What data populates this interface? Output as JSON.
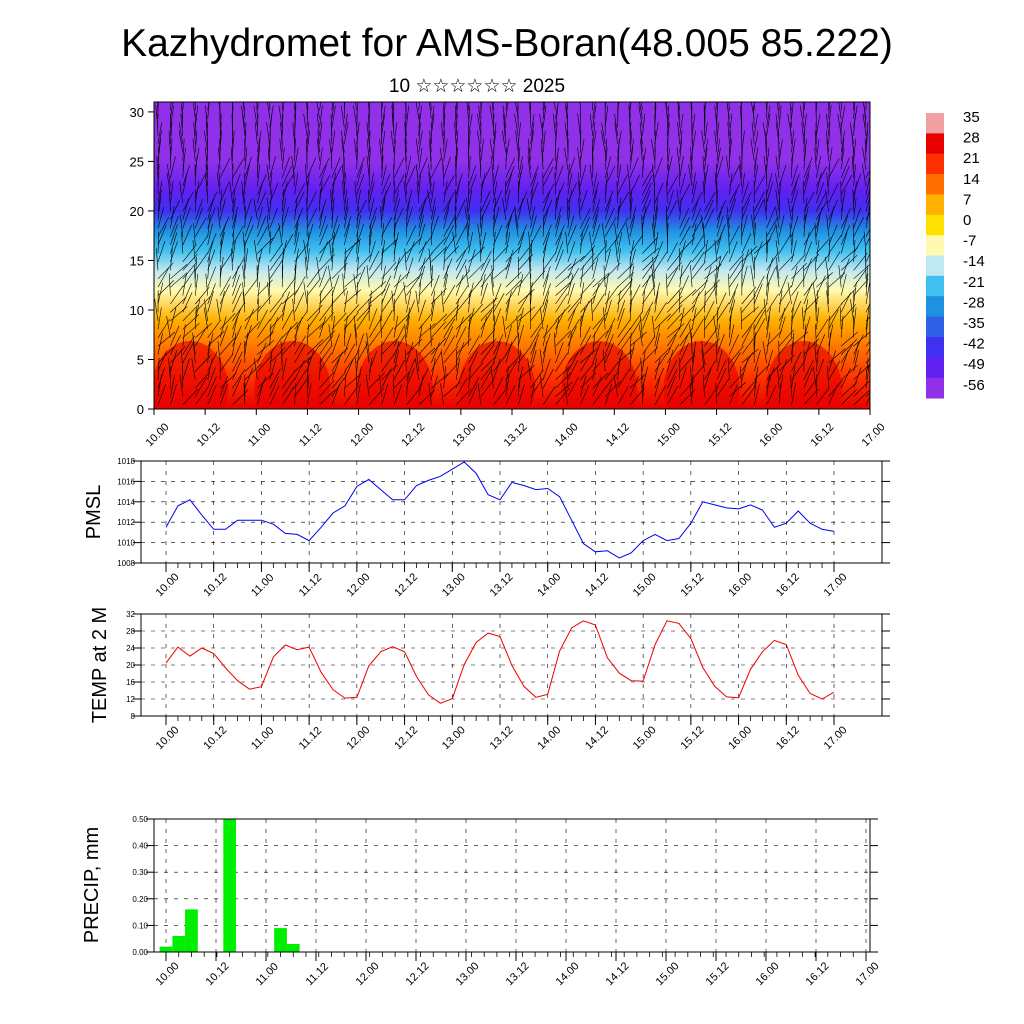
{
  "header": {
    "title": "Kazhydromet for AMS-Boran(48.005 85.222)",
    "subtitle": "10 ☆☆☆☆☆☆ 2025"
  },
  "time_labels": [
    "10.00",
    "10.12",
    "11.00",
    "11.12",
    "12.00",
    "12.12",
    "13.00",
    "13.12",
    "14.00",
    "14.12",
    "15.00",
    "15.12",
    "16.00",
    "16.12",
    "17.00"
  ],
  "chart_data": [
    {
      "type": "heatmap",
      "title": "",
      "xlabel": "",
      "ylabel": "",
      "x_ticks": [
        "10.00",
        "10.12",
        "11.00",
        "11.12",
        "12.00",
        "12.12",
        "13.00",
        "13.12",
        "14.00",
        "14.12",
        "15.00",
        "15.12",
        "16.00",
        "16.12",
        "17.00"
      ],
      "y_ticks": [
        0,
        5,
        10,
        15,
        20,
        25,
        30
      ],
      "ylim": [
        0,
        31
      ],
      "vertical_profile_temperature": {
        "levels": [
          0,
          3,
          6,
          9,
          12,
          14,
          16,
          18,
          20,
          22,
          25,
          28,
          31
        ],
        "values_C": [
          30,
          24,
          14,
          4,
          -4,
          -12,
          -18,
          -30,
          -40,
          -52,
          -56,
          -58,
          -56
        ]
      },
      "colorbar": {
        "labels": [
          "35",
          "28",
          "21",
          "14",
          "7",
          "0",
          "-7",
          "-14",
          "-21",
          "-28",
          "-35",
          "-42",
          "-49",
          "-56"
        ],
        "colors": [
          "#f0a0a0",
          "#e80000",
          "#ff3000",
          "#ff7000",
          "#ffb000",
          "#ffe000",
          "#fffab0",
          "#c0e8f0",
          "#40c0f0",
          "#2090e0",
          "#3060e8",
          "#4030f0",
          "#6020f0",
          "#9030e8"
        ]
      },
      "overlay": "wind barbs"
    },
    {
      "type": "line",
      "title": "",
      "xlabel": "",
      "ylabel": "PMSL",
      "ylim": [
        1008,
        1018
      ],
      "y_ticks": [
        "1008",
        "1010",
        "1012",
        "1014",
        "1016",
        "1018"
      ],
      "x_ticks": [
        "10.00",
        "10.12",
        "11.00",
        "11.12",
        "12.00",
        "12.12",
        "13.00",
        "13.12",
        "14.00",
        "14.12",
        "15.00",
        "15.12",
        "16.00",
        "16.12",
        "17.00"
      ],
      "step_hours": 3,
      "color": "#0000ee",
      "values": [
        1011.5,
        1013.6,
        1014.2,
        1012.7,
        1011.3,
        1011.3,
        1012.2,
        1012.2,
        1012.2,
        1011.8,
        1010.9,
        1010.8,
        1010.2,
        1011.5,
        1012.9,
        1013.6,
        1015.5,
        1016.2,
        1015.2,
        1014.2,
        1014.2,
        1015.6,
        1016.1,
        1016.5,
        1017.2,
        1017.9,
        1016.8,
        1014.7,
        1014.2,
        1015.9,
        1015.6,
        1015.2,
        1015.3,
        1014.5,
        1012.2,
        1009.9,
        1009.1,
        1009.2,
        1008.5,
        1009.0,
        1010.2,
        1010.8,
        1010.2,
        1010.4,
        1011.9,
        1014.0,
        1013.7,
        1013.4,
        1013.3,
        1013.7,
        1013.2,
        1011.5,
        1011.9,
        1013.1,
        1011.9,
        1011.3,
        1011.1
      ],
      "grid": true
    },
    {
      "type": "line",
      "title": "",
      "xlabel": "",
      "ylabel": "TEMP at 2 M",
      "ylim": [
        8,
        32
      ],
      "y_ticks": [
        "8",
        "12",
        "16",
        "20",
        "24",
        "28",
        "32"
      ],
      "x_ticks": [
        "10.00",
        "10.12",
        "11.00",
        "11.12",
        "12.00",
        "12.12",
        "13.00",
        "13.12",
        "14.00",
        "14.12",
        "15.00",
        "15.12",
        "16.00",
        "16.12",
        "17.00"
      ],
      "step_hours": 3,
      "color": "#ee0000",
      "values": [
        20.5,
        24.2,
        22.1,
        24.0,
        22.7,
        19.3,
        16.3,
        14.3,
        14.9,
        21.9,
        24.7,
        23.6,
        24.2,
        18.3,
        14.2,
        12.2,
        12.4,
        19.8,
        23.1,
        24.3,
        23.1,
        17.3,
        13.0,
        11.0,
        12.1,
        20.1,
        25.3,
        27.5,
        26.7,
        19.9,
        15.0,
        12.4,
        13.1,
        23.3,
        28.7,
        30.4,
        29.4,
        21.7,
        18.1,
        16.3,
        16.2,
        24.8,
        30.4,
        29.8,
        26.2,
        19.4,
        15.0,
        12.5,
        12.3,
        19.0,
        23.1,
        25.8,
        24.8,
        17.6,
        13.3,
        12.0,
        13.6
      ],
      "grid": true
    },
    {
      "type": "bar",
      "title": "",
      "xlabel": "",
      "ylabel": "PRECIP, mm",
      "ylim": [
        0,
        0.5
      ],
      "y_ticks": [
        "0.00",
        "0.10",
        "0.20",
        "0.30",
        "0.40",
        "0.50"
      ],
      "x_ticks": [
        "10.00",
        "10.12",
        "11.00",
        "11.12",
        "12.00",
        "12.12",
        "13.00",
        "13.12",
        "14.00",
        "14.12",
        "15.00",
        "15.12",
        "16.00",
        "16.12",
        "17.00"
      ],
      "step_hours": 3,
      "color": "#00ee00",
      "values": [
        0.02,
        0.06,
        0.16,
        0,
        0,
        0.5,
        0,
        0,
        0,
        0.09,
        0.03,
        0,
        0,
        0,
        0,
        0,
        0,
        0,
        0,
        0,
        0,
        0,
        0,
        0,
        0,
        0,
        0,
        0,
        0,
        0,
        0,
        0,
        0,
        0,
        0,
        0,
        0,
        0,
        0,
        0,
        0,
        0,
        0,
        0,
        0,
        0,
        0,
        0,
        0,
        0,
        0,
        0,
        0,
        0,
        0,
        0
      ],
      "grid": true
    }
  ]
}
